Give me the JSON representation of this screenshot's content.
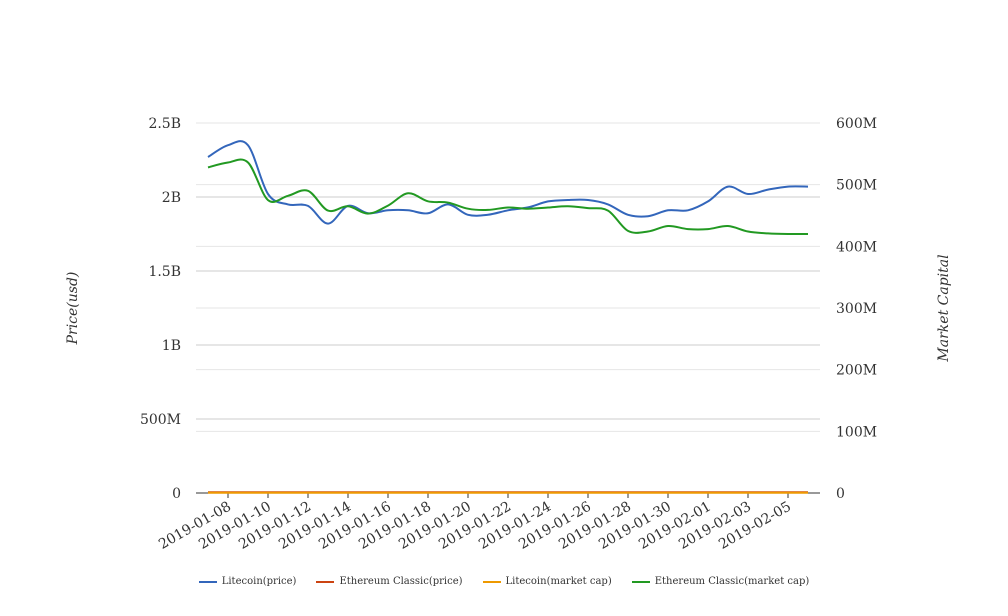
{
  "chart_data": {
    "type": "line",
    "x": [
      "2019-01-07",
      "2019-01-08",
      "2019-01-09",
      "2019-01-10",
      "2019-01-11",
      "2019-01-12",
      "2019-01-13",
      "2019-01-14",
      "2019-01-15",
      "2019-01-16",
      "2019-01-17",
      "2019-01-18",
      "2019-01-19",
      "2019-01-20",
      "2019-01-21",
      "2019-01-22",
      "2019-01-23",
      "2019-01-24",
      "2019-01-25",
      "2019-01-26",
      "2019-01-27",
      "2019-01-28",
      "2019-01-29",
      "2019-01-30",
      "2019-01-31",
      "2019-02-01",
      "2019-02-02",
      "2019-02-03",
      "2019-02-04",
      "2019-02-05",
      "2019-02-06"
    ],
    "xticks": [
      "2019-01-08",
      "2019-01-10",
      "2019-01-12",
      "2019-01-14",
      "2019-01-16",
      "2019-01-18",
      "2019-01-20",
      "2019-01-22",
      "2019-01-24",
      "2019-01-26",
      "2019-01-28",
      "2019-01-30",
      "2019-02-01",
      "2019-02-03",
      "2019-02-05"
    ],
    "series": [
      {
        "name": "Litecoin(price)",
        "axis": "left",
        "color": "#3366bb",
        "values": [
          2.27,
          2.35,
          2.35,
          2.02,
          1.95,
          1.94,
          1.82,
          1.94,
          1.89,
          1.91,
          1.91,
          1.89,
          1.95,
          1.88,
          1.88,
          1.91,
          1.93,
          1.97,
          1.98,
          1.98,
          1.95,
          1.88,
          1.87,
          1.91,
          1.91,
          1.97,
          2.07,
          2.02,
          2.05,
          2.07,
          2.07
        ]
      },
      {
        "name": "Ethereum Classic(price)",
        "axis": "left",
        "color": "#cc4411",
        "values": [
          0.005,
          0.005,
          0.005,
          0.005,
          0.005,
          0.005,
          0.005,
          0.005,
          0.005,
          0.005,
          0.005,
          0.005,
          0.005,
          0.005,
          0.005,
          0.005,
          0.005,
          0.005,
          0.005,
          0.005,
          0.005,
          0.005,
          0.005,
          0.005,
          0.005,
          0.005,
          0.005,
          0.005,
          0.005,
          0.005,
          0.005
        ]
      },
      {
        "name": "Litecoin(market cap)",
        "axis": "right",
        "color": "#ee9900",
        "values": [
          0.5,
          0.5,
          0.5,
          0.5,
          0.5,
          0.5,
          0.5,
          0.5,
          0.5,
          0.5,
          0.5,
          0.5,
          0.5,
          0.5,
          0.5,
          0.5,
          0.5,
          0.5,
          0.5,
          0.5,
          0.5,
          0.5,
          0.5,
          0.5,
          0.5,
          0.5,
          0.5,
          0.5,
          0.5,
          0.5,
          0.5
        ]
      },
      {
        "name": "Ethereum Classic(market cap)",
        "axis": "right",
        "color": "#229922",
        "values": [
          528,
          536,
          536,
          475,
          482,
          490,
          458,
          465,
          453,
          466,
          486,
          473,
          471,
          461,
          459,
          463,
          461,
          463,
          465,
          462,
          458,
          425,
          424,
          433,
          428,
          428,
          433,
          424,
          421,
          420,
          420
        ]
      }
    ],
    "y_left": {
      "label": "Price(usd)",
      "min": 0,
      "max": 2.5,
      "ticks": [
        0,
        0.5,
        1,
        1.5,
        2,
        2.5
      ],
      "tick_labels": [
        "0",
        "500M",
        "1B",
        "1.5B",
        "2B",
        "2.5B"
      ]
    },
    "y_right": {
      "label": "Market Capital",
      "min": 0,
      "max": 600,
      "ticks": [
        0,
        100,
        200,
        300,
        400,
        500,
        600
      ],
      "tick_labels": [
        "0",
        "100M",
        "200M",
        "300M",
        "400M",
        "500M",
        "600M"
      ]
    },
    "grid": true,
    "legend": "bottom"
  }
}
